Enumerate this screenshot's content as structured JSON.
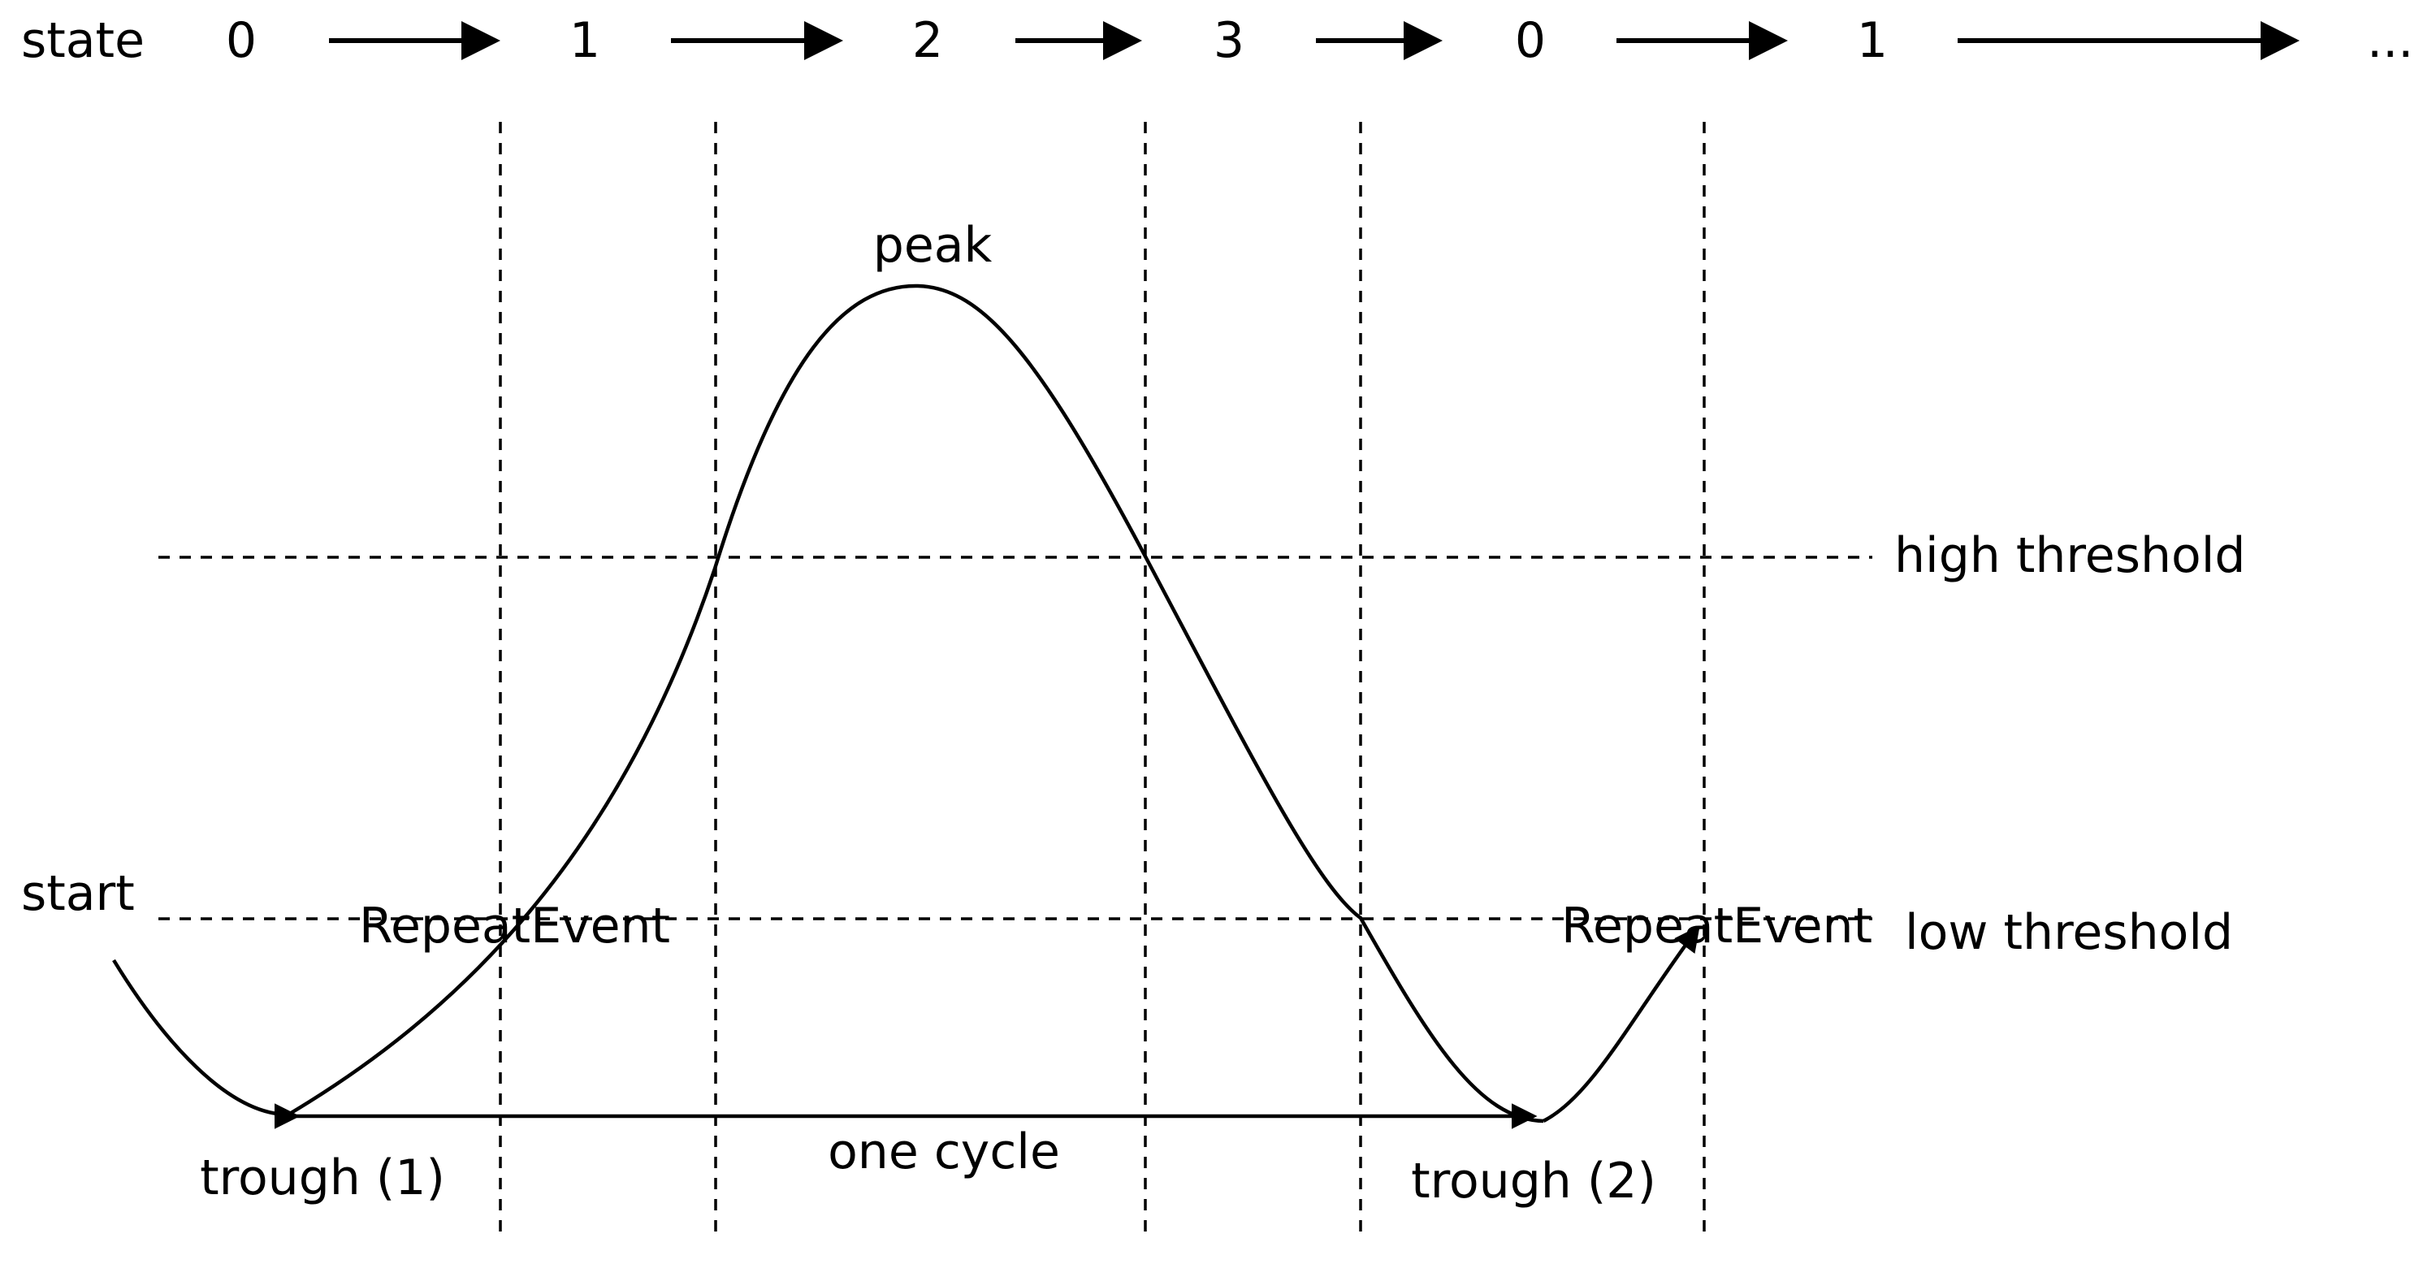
{
  "state_row": {
    "label": "state",
    "states": [
      "0",
      "1",
      "2",
      "3",
      "0",
      "1"
    ],
    "ellipsis": "..."
  },
  "labels": {
    "peak": "peak",
    "high_threshold": "high threshold",
    "low_threshold": "low threshold",
    "start": "start",
    "repeat_event_1": "RepeatEvent",
    "repeat_event_2": "RepeatEvent",
    "trough_1": "trough (1)",
    "trough_2": "trough (2)",
    "one_cycle": "one cycle"
  },
  "colors": {
    "ink": "#000000",
    "background": "#ffffff"
  }
}
